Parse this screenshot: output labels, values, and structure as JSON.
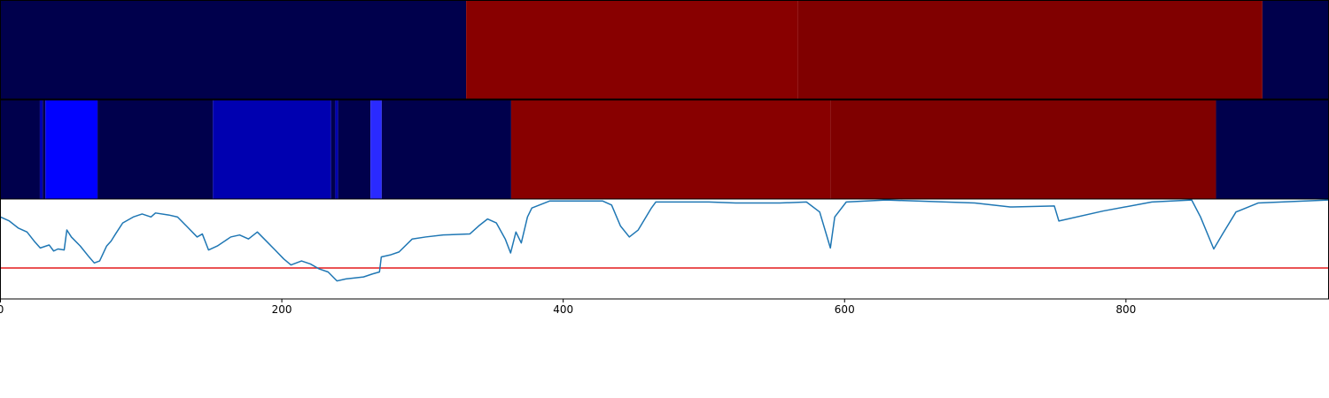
{
  "chart_data": [
    {
      "type": "heatmap",
      "xlim": [
        0,
        944
      ],
      "bins": [
        0,
        331,
        567,
        897,
        944
      ],
      "colors": [
        "#00004c",
        "#880000",
        "#800000",
        "#00004c"
      ]
    },
    {
      "type": "heatmap",
      "xlim": [
        0,
        944
      ],
      "bins": [
        0,
        28,
        30,
        32,
        69,
        151,
        235,
        238,
        240,
        263,
        271,
        363,
        590,
        864,
        944
      ],
      "colors": [
        "#00004c",
        "#0000b0",
        "#00004c",
        "#0000ff",
        "#00004c",
        "#0000b0",
        "#00004c",
        "#0000b0",
        "#00004c",
        "#2a2aff",
        "#00004c",
        "#880000",
        "#7f0000",
        "#00004c"
      ]
    },
    {
      "type": "line",
      "xlim": [
        0,
        944
      ],
      "ylim": [
        0,
        1
      ],
      "xticks": [
        0,
        200,
        400,
        600,
        800
      ],
      "hline": {
        "value": 0.31,
        "color": "#e41a1c"
      },
      "x": [
        0,
        6.3,
        12.6,
        18.9,
        23.9,
        28.3,
        34.6,
        37.8,
        40.9,
        45.3,
        47.2,
        50.4,
        56.7,
        63,
        66.7,
        70.5,
        75.5,
        78.7,
        81.8,
        86.9,
        94.4,
        100.7,
        107,
        110.2,
        119.6,
        125.9,
        132.2,
        139.8,
        143.5,
        147.9,
        154.2,
        163.7,
        170,
        176.3,
        182.6,
        188.9,
        195.2,
        201.4,
        206.5,
        214,
        220.3,
        226.6,
        232.9,
        239.2,
        245.5,
        258.1,
        264.4,
        269.4,
        270.7,
        277,
        283.3,
        292.7,
        302.2,
        314.8,
        333.6,
        339.9,
        346.2,
        352.5,
        358.8,
        362.6,
        366.4,
        370.2,
        374.6,
        377.7,
        390.3,
        428.1,
        434.4,
        440.7,
        447,
        453.3,
        462.7,
        465.8,
        503.6,
        522.5,
        554,
        572.9,
        582.3,
        589.9,
        593,
        601.2,
        629.5,
        692.5,
        717.7,
        749.1,
        752.3,
        783.8,
        818.4,
        846.7,
        853,
        862.4,
        868.7,
        878.2,
        893.9,
        944
      ],
      "series": [
        {
          "color": "#1f77b4",
          "values": [
            0.82,
            0.78,
            0.71,
            0.67,
            0.58,
            0.51,
            0.54,
            0.48,
            0.5,
            0.49,
            0.69,
            0.62,
            0.53,
            0.42,
            0.36,
            0.38,
            0.53,
            0.58,
            0.65,
            0.76,
            0.82,
            0.85,
            0.82,
            0.86,
            0.84,
            0.82,
            0.73,
            0.62,
            0.65,
            0.49,
            0.53,
            0.62,
            0.64,
            0.6,
            0.67,
            0.58,
            0.49,
            0.4,
            0.34,
            0.38,
            0.35,
            0.3,
            0.27,
            0.18,
            0.2,
            0.22,
            0.25,
            0.27,
            0.42,
            0.44,
            0.47,
            0.6,
            0.62,
            0.64,
            0.65,
            0.73,
            0.8,
            0.76,
            0.6,
            0.46,
            0.67,
            0.56,
            0.82,
            0.91,
            0.98,
            0.98,
            0.94,
            0.73,
            0.62,
            0.69,
            0.91,
            0.97,
            0.97,
            0.96,
            0.96,
            0.97,
            0.87,
            0.51,
            0.82,
            0.97,
            0.99,
            0.96,
            0.92,
            0.93,
            0.78,
            0.88,
            0.97,
            0.99,
            0.82,
            0.5,
            0.65,
            0.87,
            0.96,
            0.99
          ]
        }
      ]
    }
  ]
}
